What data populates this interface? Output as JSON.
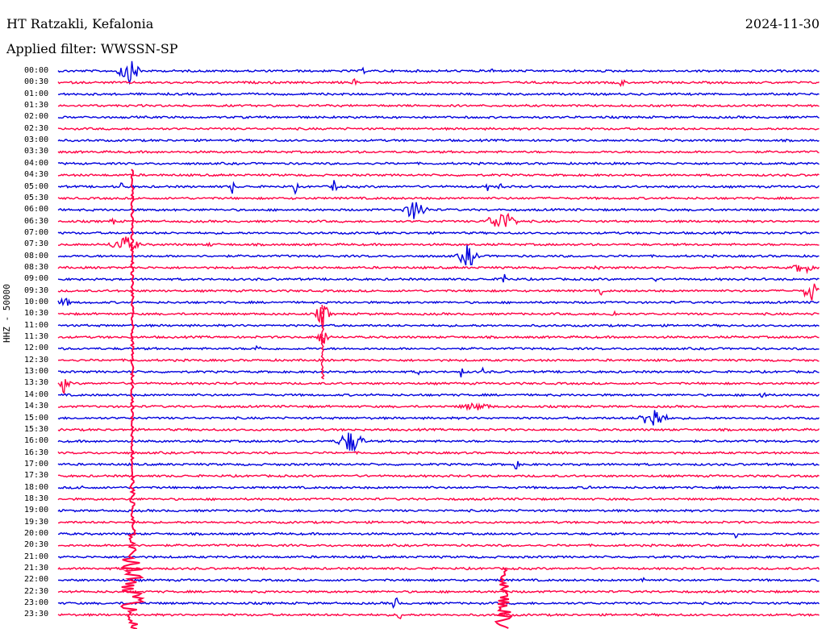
{
  "header": {
    "station": "HT Ratzakli, Kefalonia",
    "date": "2024-11-30",
    "filter": "Applied filter: WWSSN-SP"
  },
  "axis": {
    "channel_label": "HHZ - 50000"
  },
  "colors": {
    "trace_even": "#0000dd",
    "trace_odd": "#ff0044"
  },
  "traces": [
    {
      "time": "00:00"
    },
    {
      "time": "00:30"
    },
    {
      "time": "01:00"
    },
    {
      "time": "01:30"
    },
    {
      "time": "02:00"
    },
    {
      "time": "02:30"
    },
    {
      "time": "03:00"
    },
    {
      "time": "03:30"
    },
    {
      "time": "04:00"
    },
    {
      "time": "04:30"
    },
    {
      "time": "05:00"
    },
    {
      "time": "05:30"
    },
    {
      "time": "06:00"
    },
    {
      "time": "06:30"
    },
    {
      "time": "07:00"
    },
    {
      "time": "07:30"
    },
    {
      "time": "08:00"
    },
    {
      "time": "08:30"
    },
    {
      "time": "09:00"
    },
    {
      "time": "09:30"
    },
    {
      "time": "10:00"
    },
    {
      "time": "10:30"
    },
    {
      "time": "11:00"
    },
    {
      "time": "11:30"
    },
    {
      "time": "12:00"
    },
    {
      "time": "12:30"
    },
    {
      "time": "13:00"
    },
    {
      "time": "13:30"
    },
    {
      "time": "14:00"
    },
    {
      "time": "14:30"
    },
    {
      "time": "15:00"
    },
    {
      "time": "15:30"
    },
    {
      "time": "16:00"
    },
    {
      "time": "16:30"
    },
    {
      "time": "17:00"
    },
    {
      "time": "17:30"
    },
    {
      "time": "18:00"
    },
    {
      "time": "18:30"
    },
    {
      "time": "19:00"
    },
    {
      "time": "19:30"
    },
    {
      "time": "20:00"
    },
    {
      "time": "20:30"
    },
    {
      "time": "21:00"
    },
    {
      "time": "21:30"
    },
    {
      "time": "22:00"
    },
    {
      "time": "22:30"
    },
    {
      "time": "23:00"
    },
    {
      "time": "23:30"
    }
  ]
}
